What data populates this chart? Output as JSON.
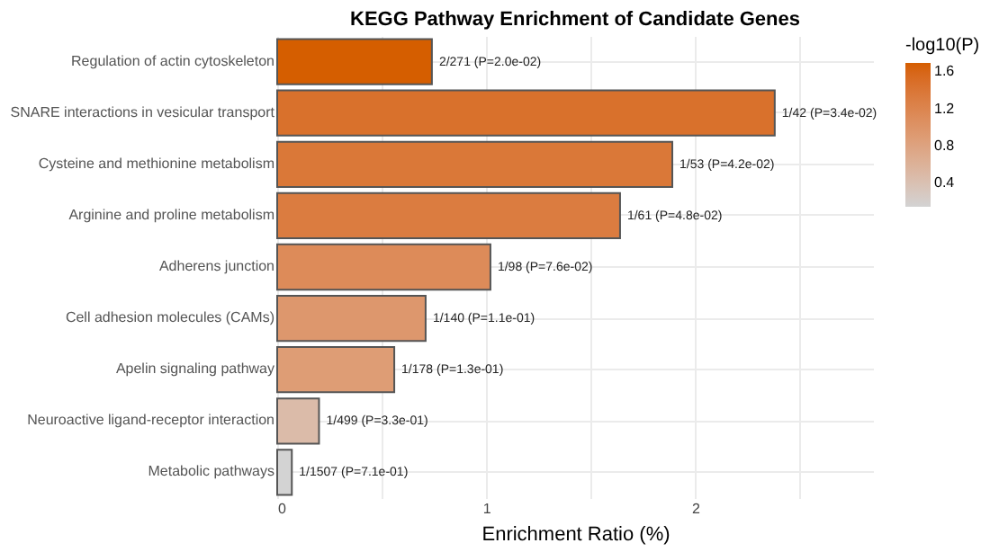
{
  "chart_data": {
    "type": "bar",
    "orientation": "horizontal",
    "title": "KEGG Pathway Enrichment of Candidate Genes",
    "xlabel": "Enrichment Ratio (%)",
    "clabel": "-log10(P)",
    "categories": [
      "Regulation of actin cytoskeleton",
      "SNARE interactions in vesicular transport",
      "Cysteine and methionine metabolism",
      "Arginine and proline metabolism",
      "Adherens junction",
      "Cell adhesion molecules (CAMs)",
      "Apelin signaling pathway",
      "Neuroactive ligand-receptor interaction",
      "Metabolic pathways"
    ],
    "values": [
      0.74,
      2.38,
      1.89,
      1.64,
      1.02,
      0.71,
      0.56,
      0.2,
      0.07
    ],
    "cvalues": [
      1.7,
      1.47,
      1.38,
      1.32,
      1.12,
      0.96,
      0.89,
      0.48,
      0.15
    ],
    "value_labels": [
      "2/271 (P=2.0e-02)",
      "1/42 (P=3.4e-02)",
      "1/53 (P=4.2e-02)",
      "1/61 (P=4.8e-02)",
      "1/98 (P=7.6e-02)",
      "1/140 (P=1.1e-01)",
      "1/178 (P=1.3e-01)",
      "1/499 (P=3.3e-01)",
      "1/1507 (P=7.1e-01)"
    ],
    "clim": [
      0.15,
      1.7
    ],
    "cticks": [
      0.4,
      0.8,
      1.2,
      1.6
    ],
    "colors": [
      "#d55e00",
      "#d56f1f",
      "#d5762c",
      "#d57b34",
      "#d48a4f",
      "#d49665",
      "#d49b6e",
      "#d3baa6",
      "#d3d3d3"
    ],
    "xlim": [
      0,
      2.85
    ],
    "xticks": [
      0,
      {
        "value": 0.5,
        "label": null
      },
      1,
      {
        "value": 1.5,
        "label": null
      },
      2,
      {
        "value": 2.5,
        "label": null
      }
    ],
    "grid": true
  }
}
